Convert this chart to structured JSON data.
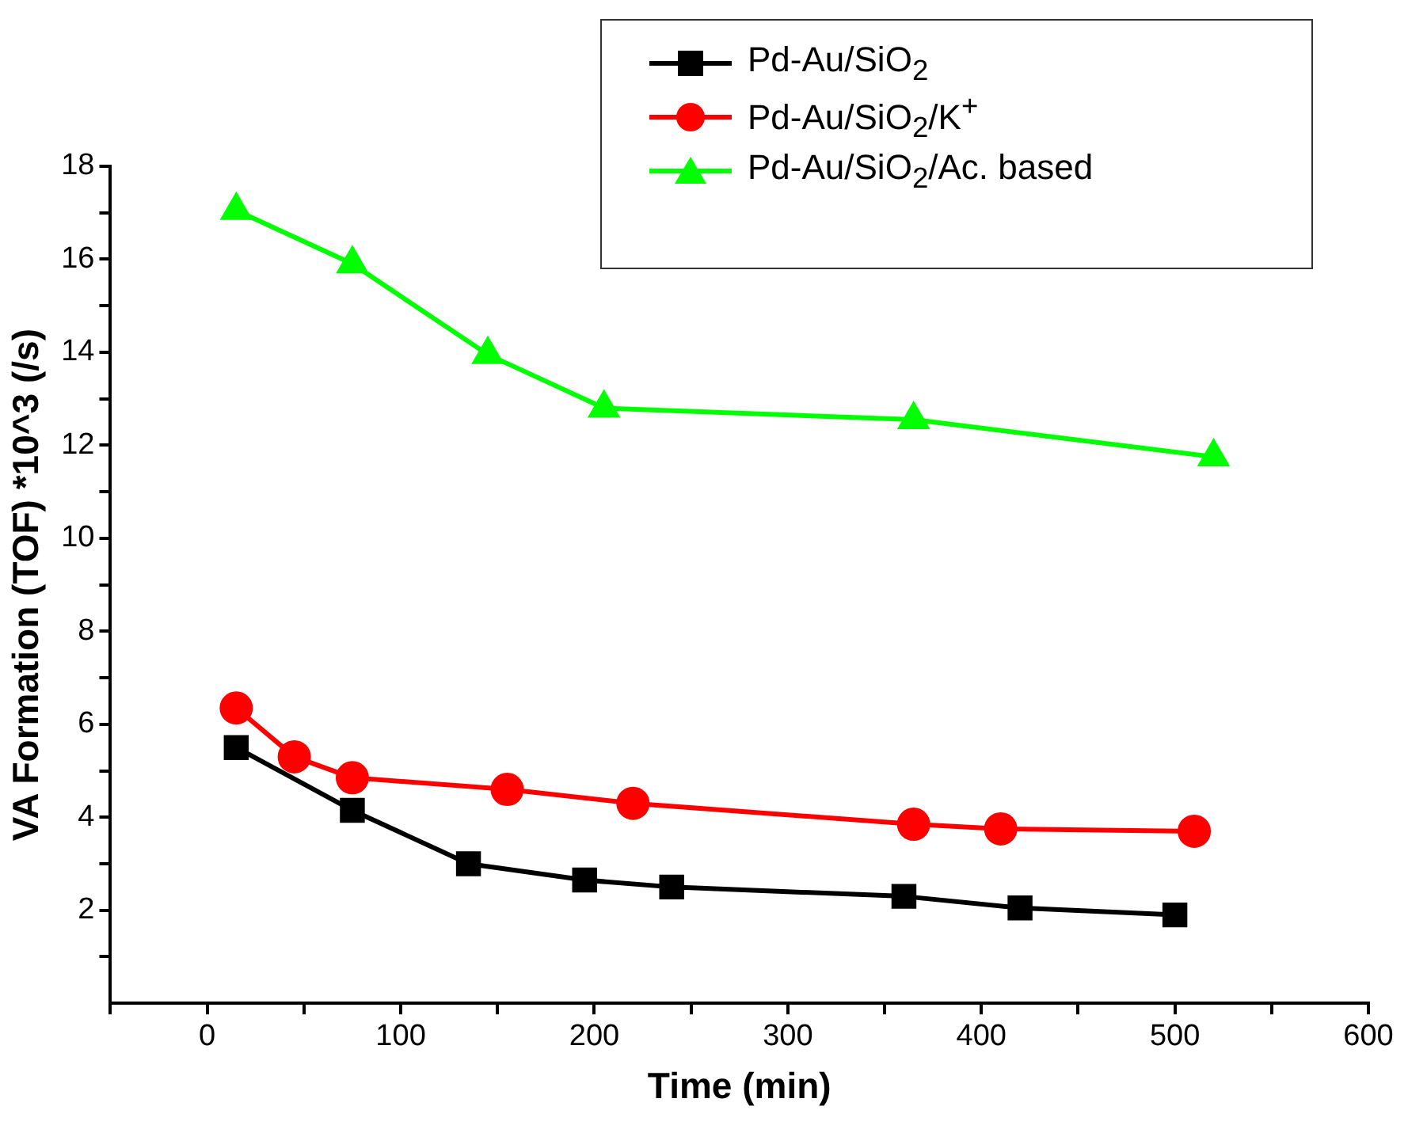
{
  "chart_data": {
    "type": "line",
    "xlabel": "Time (min)",
    "ylabel": "VA Formation (TOF) *10^3 (/s)",
    "xlim": [
      -50,
      600
    ],
    "xticks": [
      {
        "value": -50,
        "label": null
      },
      0,
      {
        "value": 50,
        "label": null
      },
      100,
      {
        "value": 150,
        "label": null
      },
      200,
      {
        "value": 250,
        "label": null
      },
      300,
      {
        "value": 350,
        "label": null
      },
      400,
      {
        "value": 450,
        "label": null
      },
      500,
      {
        "value": 550,
        "label": null
      },
      600
    ],
    "ylim": [
      0,
      18
    ],
    "yticks": [
      {
        "value": 1,
        "label": null
      },
      2,
      {
        "value": 3,
        "label": null
      },
      4,
      {
        "value": 5,
        "label": null
      },
      6,
      {
        "value": 7,
        "label": null
      },
      8,
      {
        "value": 9,
        "label": null
      },
      10,
      {
        "value": 11,
        "label": null
      },
      12,
      {
        "value": 13,
        "label": null
      },
      14,
      {
        "value": 15,
        "label": null
      },
      16,
      {
        "value": 17,
        "label": null
      },
      18
    ],
    "grid": false,
    "legend": "top right",
    "line_style": "solid",
    "series": [
      {
        "name": "Pd-Au/SiO$_{2}$",
        "color": "#000000",
        "marker": "square",
        "x": [
          15,
          75,
          135,
          195,
          240,
          360,
          420,
          500
        ],
        "values": [
          5.5,
          4.15,
          3.0,
          2.65,
          2.5,
          2.3,
          2.05,
          1.9
        ]
      },
      {
        "name": "Pd-Au/SiO$_{2}$/K$^{+}$",
        "color": "#ff0000",
        "marker": "circle",
        "x": [
          15,
          45,
          75,
          155,
          220,
          365,
          410,
          510
        ],
        "values": [
          6.35,
          5.3,
          4.85,
          4.6,
          4.3,
          3.85,
          3.75,
          3.7
        ]
      },
      {
        "name": "Pd-Au/SiO$_{2}$/Ac. based",
        "color": "#00ff00",
        "marker": "triangle",
        "x": [
          15,
          75,
          145,
          205,
          365,
          520
        ],
        "values": [
          17.05,
          15.9,
          13.95,
          12.8,
          12.55,
          11.75
        ]
      }
    ]
  }
}
